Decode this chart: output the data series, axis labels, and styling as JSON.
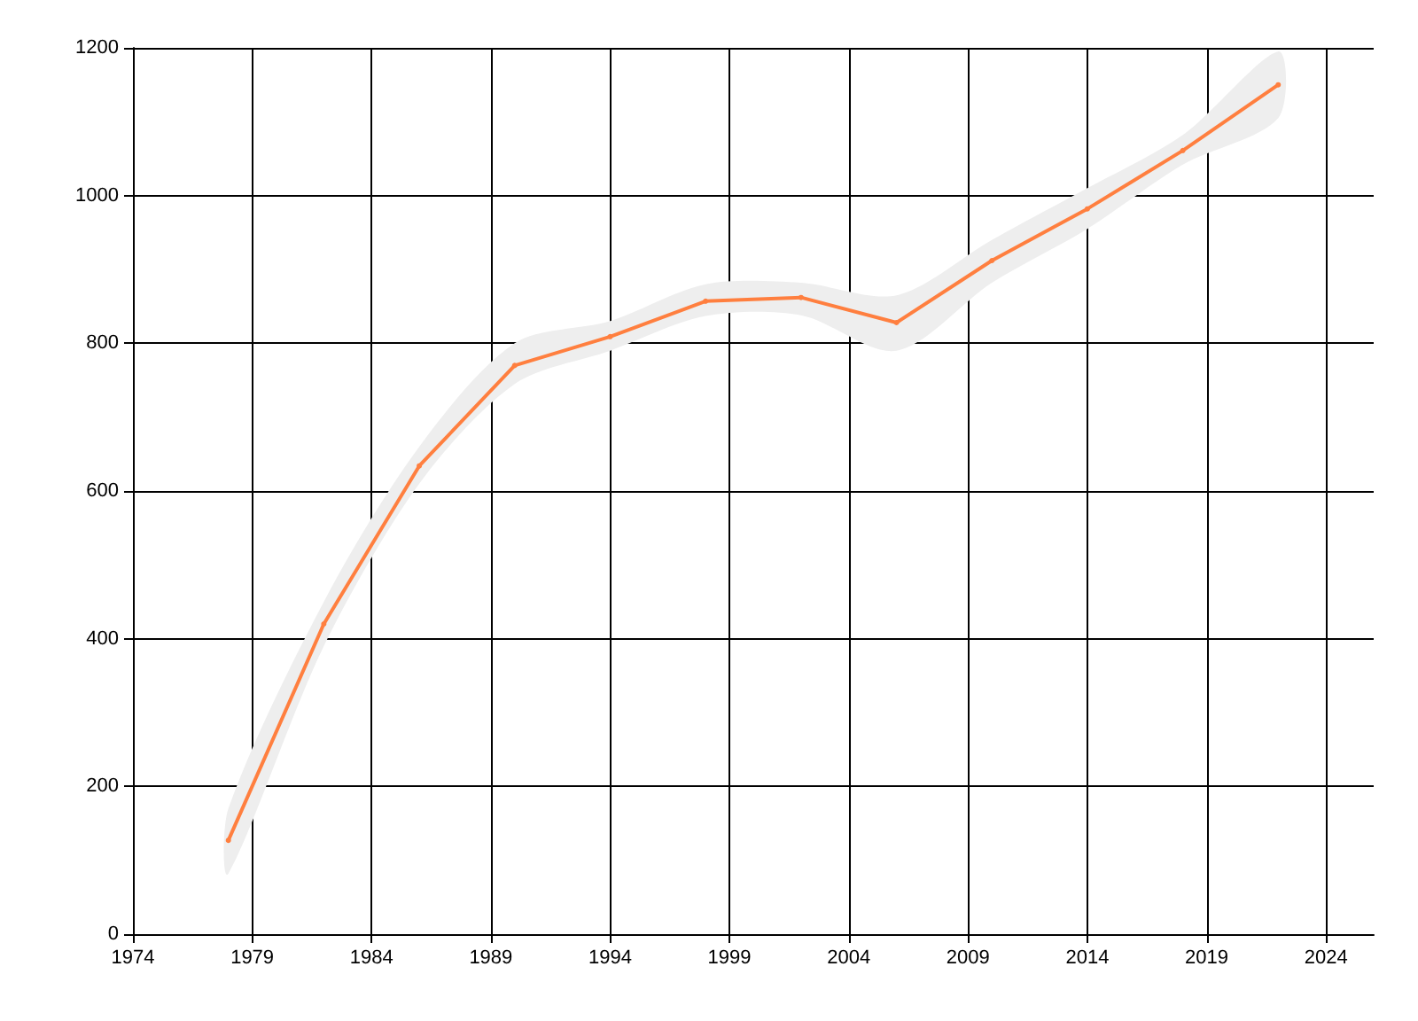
{
  "chart_data": {
    "type": "line",
    "x": [
      1978,
      1982,
      1986,
      1990,
      1994,
      1998,
      2002,
      2006,
      2010,
      2014,
      2018,
      2022
    ],
    "series": [
      {
        "color": "#ff7f3f",
        "values": [
          127,
          420,
          634,
          770,
          809,
          857,
          862,
          828,
          912,
          982,
          1061,
          1150
        ],
        "lower": [
          82,
          390,
          610,
          745,
          790,
          837,
          838,
          790,
          882,
          955,
          1042,
          1105
        ],
        "upper": [
          170,
          450,
          660,
          800,
          830,
          880,
          882,
          865,
          940,
          1010,
          1082,
          1195
        ]
      }
    ],
    "xlim": [
      1974,
      2026
    ],
    "xticks": [
      1974,
      1979,
      1984,
      1989,
      1994,
      1999,
      2004,
      2009,
      2014,
      2019,
      2024
    ],
    "ylim": [
      0,
      1200
    ],
    "yticks": [
      0,
      200,
      400,
      600,
      800,
      1000,
      1200
    ],
    "grid": true,
    "marker": "circle",
    "line_style": "solid"
  }
}
